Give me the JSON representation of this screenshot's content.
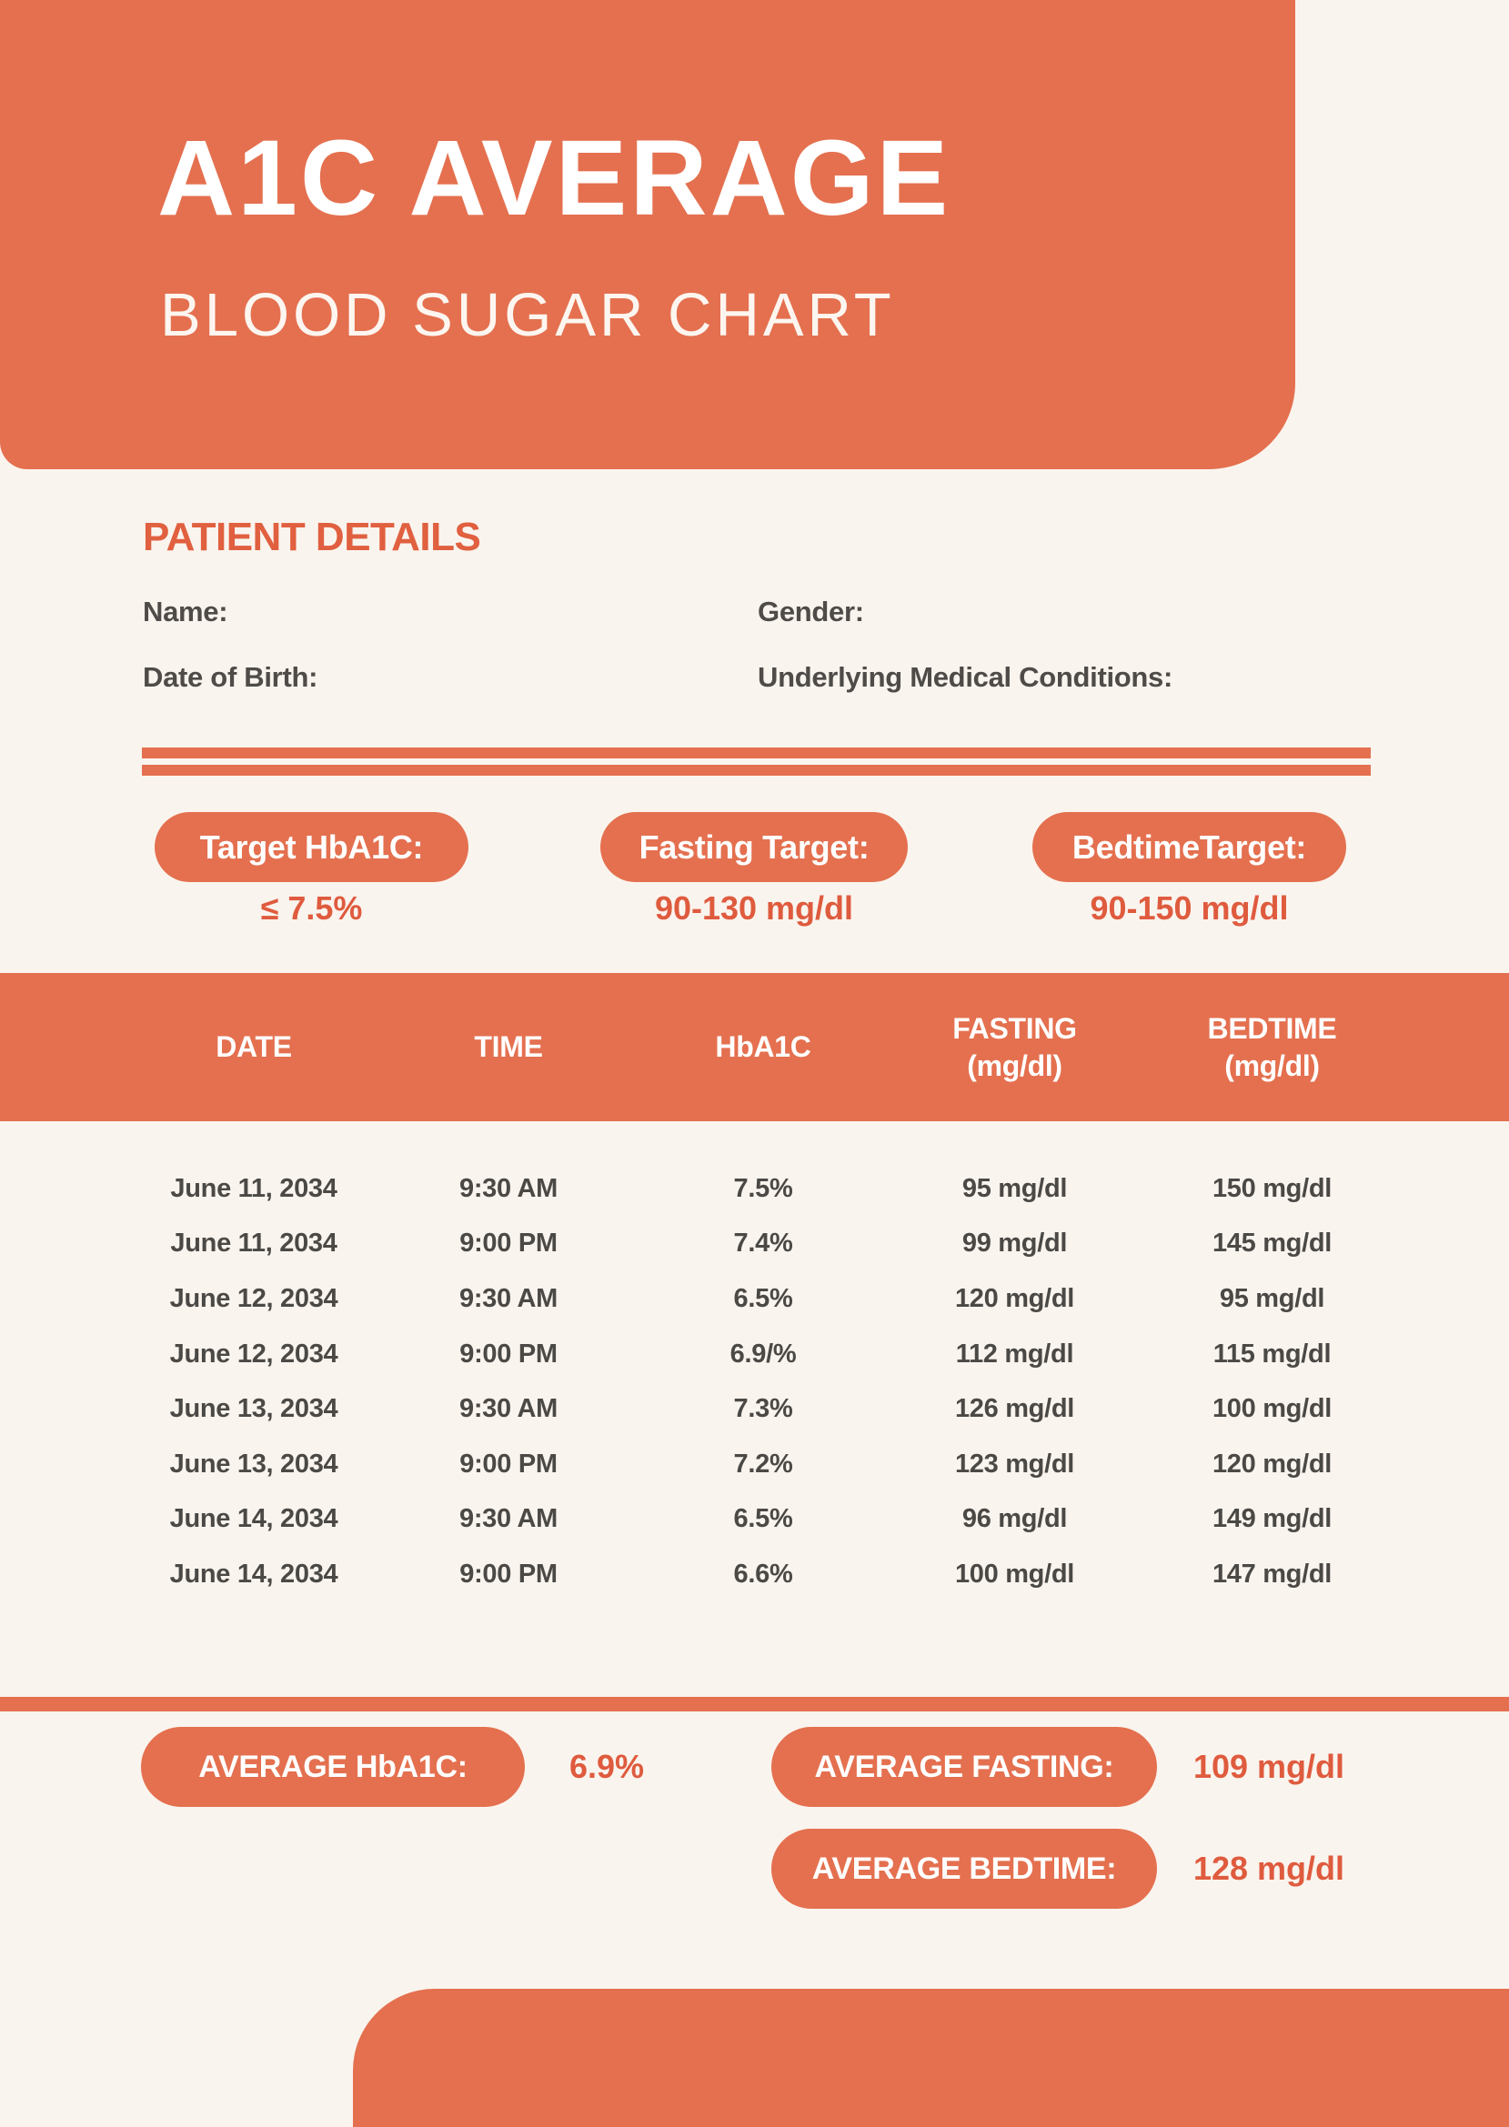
{
  "colors": {
    "accent": "#E4704F",
    "accent_text": "#DF5B3E",
    "heading_text": "#E0603F",
    "dark_text": "#4E4B48",
    "background": "#FAF4EE",
    "header_text": "#FFFFFF"
  },
  "header": {
    "title": "A1C AVERAGE",
    "subtitle": "BLOOD SUGAR CHART"
  },
  "patient_details": {
    "heading": "PATIENT DETAILS",
    "name_label": "Name:",
    "gender_label": "Gender:",
    "dob_label": "Date of Birth:",
    "conditions_label": "Underlying Medical Conditions:"
  },
  "targets": [
    {
      "label": "Target HbA1C:",
      "value": "≤ 7.5%"
    },
    {
      "label": "Fasting Target:",
      "value": "90-130 mg/dl"
    },
    {
      "label": "BedtimeTarget:",
      "value": "90-150 mg/dl"
    }
  ],
  "table": {
    "columns": [
      {
        "line1": "DATE",
        "line2": ""
      },
      {
        "line1": "TIME",
        "line2": ""
      },
      {
        "line1": "HbA1C",
        "line2": ""
      },
      {
        "line1": "FASTING",
        "line2": "(mg/dl)"
      },
      {
        "line1": "BEDTIME",
        "line2": "(mg/dl)"
      }
    ],
    "rows": [
      [
        "June 11, 2034",
        "9:30 AM",
        "7.5%",
        "95 mg/dl",
        "150 mg/dl"
      ],
      [
        "June 11, 2034",
        "9:00 PM",
        "7.4%",
        "99 mg/dl",
        "145 mg/dl"
      ],
      [
        "June 12, 2034",
        "9:30 AM",
        "6.5%",
        "120 mg/dl",
        "95 mg/dl"
      ],
      [
        "June 12, 2034",
        "9:00 PM",
        "6.9/%",
        "112 mg/dl",
        "115 mg/dl"
      ],
      [
        "June 13, 2034",
        "9:30 AM",
        "7.3%",
        "126 mg/dl",
        "100 mg/dl"
      ],
      [
        "June 13, 2034",
        "9:00 PM",
        "7.2%",
        "123 mg/dl",
        "120 mg/dl"
      ],
      [
        "June 14, 2034",
        "9:30 AM",
        "6.5%",
        "96 mg/dl",
        "149 mg/dl"
      ],
      [
        "June 14, 2034",
        "9:00 PM",
        "6.6%",
        "100 mg/dl",
        "147 mg/dl"
      ]
    ]
  },
  "averages": {
    "hba1c": {
      "label": "AVERAGE HbA1C:",
      "value": "6.9%"
    },
    "fasting": {
      "label": "AVERAGE FASTING:",
      "value": "109 mg/dl"
    },
    "bedtime": {
      "label": "AVERAGE BEDTIME:",
      "value": "128 mg/dl"
    }
  }
}
